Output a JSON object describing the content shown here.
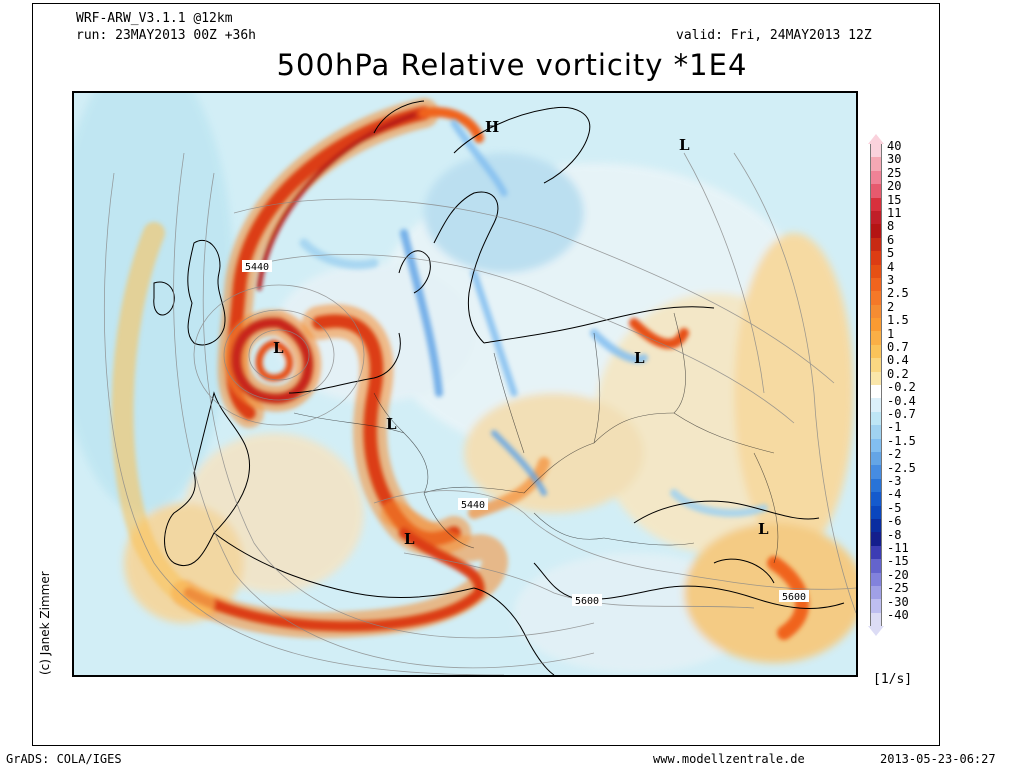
{
  "header": {
    "model": "WRF-ARW_V3.1.1 @12km",
    "run": "run: 23MAY2013 00Z +36h",
    "valid": "valid: Fri, 24MAY2013 12Z",
    "title": "500hPa Relative vorticity *1E4"
  },
  "map": {
    "pressure_systems": [
      {
        "type": "H",
        "label": "H"
      },
      {
        "type": "L",
        "label": "L"
      },
      {
        "type": "L",
        "label": "L"
      },
      {
        "type": "L",
        "label": "L"
      },
      {
        "type": "L",
        "label": "L"
      },
      {
        "type": "L",
        "label": "L"
      },
      {
        "type": "L",
        "label": "L"
      }
    ],
    "contour_labels": [
      "5440",
      "5440",
      "5600",
      "5600"
    ]
  },
  "legend": {
    "unit": "[1/s]",
    "values": [
      "40",
      "30",
      "25",
      "20",
      "15",
      "11",
      "8",
      "6",
      "5",
      "4",
      "3",
      "2.5",
      "2",
      "1.5",
      "1",
      "0.7",
      "0.4",
      "0.2",
      "-0.2",
      "-0.4",
      "-0.7",
      "-1",
      "-1.5",
      "-2",
      "-2.5",
      "-3",
      "-4",
      "-5",
      "-6",
      "-8",
      "-11",
      "-15",
      "-20",
      "-25",
      "-30",
      "-40"
    ],
    "colors": [
      "#fad2dc",
      "#f5a8b4",
      "#f08296",
      "#e65a6e",
      "#d7303c",
      "#c01e28",
      "#b41414",
      "#c82a14",
      "#dc3c14",
      "#e65014",
      "#f0641e",
      "#f57828",
      "#f58c32",
      "#fa9b32",
      "#faaf46",
      "#fac35a",
      "#fad782",
      "#fae6aa",
      "#ffffff",
      "#dcf0fa",
      "#bee6f5",
      "#a0d2f0",
      "#82bef0",
      "#64a5e6",
      "#468ce1",
      "#2873d7",
      "#145acd",
      "#0a46be",
      "#0a2da0",
      "#141e8c",
      "#3c3cb4",
      "#6464cd",
      "#8282dc",
      "#a0a0e6",
      "#bebef0",
      "#dcdcf5"
    ]
  },
  "footer": {
    "left": "GrADS: COLA/IGES",
    "center": "www.modellzentrale.de",
    "right": "2013-05-23-06:27",
    "credit": "(c) Janek Zimmer"
  }
}
